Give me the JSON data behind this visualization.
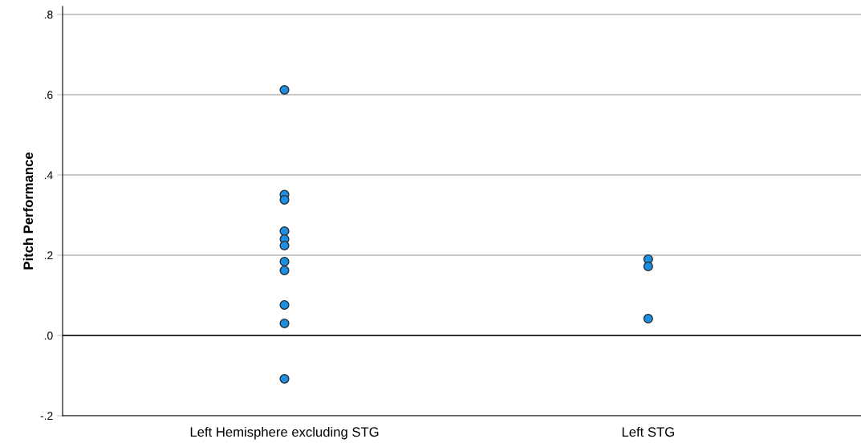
{
  "chart_data": {
    "type": "scatter",
    "ylabel": "Pitch Performance",
    "categories": [
      "Left Hemisphere excluding STG",
      "Left STG"
    ],
    "series": [
      {
        "x": [
          "Left Hemisphere excluding STG",
          "Left Hemisphere excluding STG",
          "Left Hemisphere excluding STG",
          "Left Hemisphere excluding STG",
          "Left Hemisphere excluding STG",
          "Left Hemisphere excluding STG",
          "Left Hemisphere excluding STG",
          "Left Hemisphere excluding STG",
          "Left Hemisphere excluding STG",
          "Left Hemisphere excluding STG",
          "Left Hemisphere excluding STG"
        ],
        "values": [
          0.612,
          0.351,
          0.338,
          0.26,
          0.24,
          0.224,
          0.184,
          0.162,
          0.076,
          0.03,
          -0.108
        ],
        "color": "#1a8fe3"
      },
      {
        "x": [
          "Left STG",
          "Left STG",
          "Left STG"
        ],
        "values": [
          0.19,
          0.172,
          0.042
        ],
        "color": "#1a8fe3"
      }
    ],
    "ylim": [
      -0.2,
      0.82
    ],
    "yticks": [
      {
        "value": -0.2,
        "label": "-.2"
      },
      {
        "value": 0.0,
        "label": ".0"
      },
      {
        "value": 0.2,
        "label": ".2"
      },
      {
        "value": 0.4,
        "label": ".4"
      },
      {
        "value": 0.6,
        "label": ".6"
      },
      {
        "value": 0.8,
        "label": ".8"
      }
    ],
    "ref_lines": [
      {
        "axis": "y",
        "value": 0.0,
        "color": "#333333"
      }
    ],
    "grid": "y",
    "marker": "circle",
    "legend": false
  }
}
